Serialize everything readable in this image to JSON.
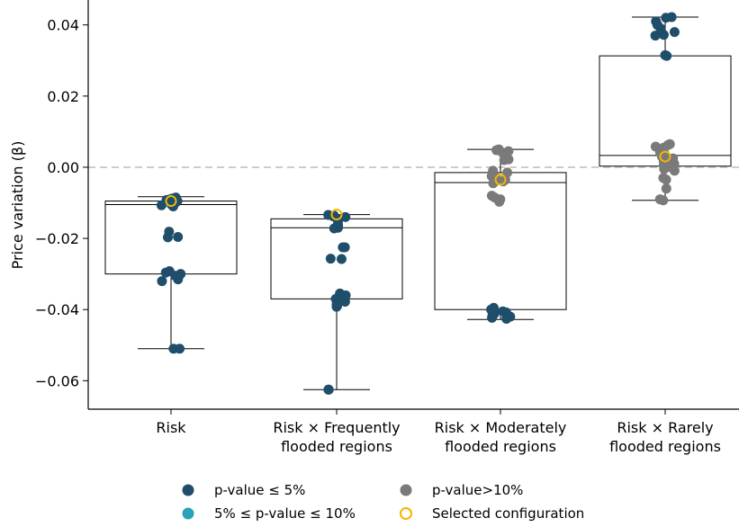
{
  "chart_data": {
    "type": "box",
    "xlabel": "",
    "ylabel": "Price variation (β)",
    "ylim": [
      -0.068,
      0.047
    ],
    "yticks": [
      0.04,
      0.02,
      0.0,
      -0.02,
      -0.04,
      -0.06
    ],
    "ytick_labels": [
      "0.04",
      "0.02",
      "0.00",
      "−0.02",
      "−0.04",
      "−0.06"
    ],
    "reference_line": {
      "y": 0.0,
      "style": "dashed",
      "color": "#cccccc"
    },
    "categories": [
      {
        "label_lines": [
          "Risk"
        ]
      },
      {
        "label_lines": [
          "Risk × Frequently",
          "flooded regions"
        ]
      },
      {
        "label_lines": [
          "Risk × Moderately",
          "flooded regions"
        ]
      },
      {
        "label_lines": [
          "Risk × Rarely",
          "flooded regions"
        ]
      }
    ],
    "boxes": [
      {
        "whisker_low": -0.051,
        "q1": -0.03,
        "median": -0.0105,
        "q3": -0.0095,
        "whisker_high": -0.0083
      },
      {
        "whisker_low": -0.0625,
        "q1": -0.037,
        "median": -0.017,
        "q3": -0.0145,
        "whisker_high": -0.0133
      },
      {
        "whisker_low": -0.0428,
        "q1": -0.04,
        "median": -0.0043,
        "q3": -0.0015,
        "whisker_high": 0.005
      },
      {
        "whisker_low": -0.0093,
        "q1": 0.0003,
        "median": 0.0033,
        "q3": 0.0313,
        "whisker_high": 0.0422
      }
    ],
    "points": [
      [
        {
          "y": -0.0085,
          "s": "sig5"
        },
        {
          "y": -0.0088,
          "s": "sig5"
        },
        {
          "y": -0.009,
          "s": "sig5"
        },
        {
          "y": -0.0092,
          "s": "sig5"
        },
        {
          "y": -0.0095,
          "s": "sig5"
        },
        {
          "y": -0.0098,
          "s": "sig5"
        },
        {
          "y": -0.01,
          "s": "sig5"
        },
        {
          "y": -0.0102,
          "s": "sig5"
        },
        {
          "y": -0.0105,
          "s": "sig5"
        },
        {
          "y": -0.0107,
          "s": "sig5"
        },
        {
          "y": -0.0108,
          "s": "sig5"
        },
        {
          "y": -0.011,
          "s": "sig5"
        },
        {
          "y": -0.0181,
          "s": "sig5"
        },
        {
          "y": -0.0196,
          "s": "sig5"
        },
        {
          "y": -0.0197,
          "s": "sig5"
        },
        {
          "y": -0.0292,
          "s": "sig5"
        },
        {
          "y": -0.0296,
          "s": "sig5"
        },
        {
          "y": -0.03,
          "s": "sig5"
        },
        {
          "y": -0.0305,
          "s": "sig5"
        },
        {
          "y": -0.031,
          "s": "sig5"
        },
        {
          "y": -0.0315,
          "s": "sig5"
        },
        {
          "y": -0.032,
          "s": "sig5"
        },
        {
          "y": -0.051,
          "s": "sig5"
        },
        {
          "y": -0.051,
          "s": "sig5"
        }
      ],
      [
        {
          "y": -0.0134,
          "s": "sig5"
        },
        {
          "y": -0.0136,
          "s": "sig5"
        },
        {
          "y": -0.0138,
          "s": "sig5"
        },
        {
          "y": -0.014,
          "s": "sig5"
        },
        {
          "y": -0.0145,
          "s": "sig5"
        },
        {
          "y": -0.015,
          "s": "sig5"
        },
        {
          "y": -0.016,
          "s": "sig5"
        },
        {
          "y": -0.0165,
          "s": "sig5"
        },
        {
          "y": -0.017,
          "s": "sig5"
        },
        {
          "y": -0.0172,
          "s": "sig5"
        },
        {
          "y": -0.0225,
          "s": "sig5"
        },
        {
          "y": -0.0225,
          "s": "sig5"
        },
        {
          "y": -0.0257,
          "s": "sig5"
        },
        {
          "y": -0.0258,
          "s": "sig5"
        },
        {
          "y": -0.0355,
          "s": "sig5"
        },
        {
          "y": -0.036,
          "s": "sig5"
        },
        {
          "y": -0.037,
          "s": "sig5"
        },
        {
          "y": -0.0378,
          "s": "sig5"
        },
        {
          "y": -0.0385,
          "s": "sig5"
        },
        {
          "y": -0.039,
          "s": "sig5"
        },
        {
          "y": -0.0392,
          "s": "sig5"
        },
        {
          "y": -0.0625,
          "s": "sig5"
        },
        {
          "y": -0.0625,
          "s": "sig5"
        }
      ],
      [
        {
          "y": 0.005,
          "s": "ns"
        },
        {
          "y": 0.0048,
          "s": "ns"
        },
        {
          "y": 0.0045,
          "s": "ns"
        },
        {
          "y": 0.004,
          "s": "ns"
        },
        {
          "y": 0.0022,
          "s": "ns"
        },
        {
          "y": 0.002,
          "s": "ns"
        },
        {
          "y": -0.001,
          "s": "ns"
        },
        {
          "y": -0.0015,
          "s": "ns"
        },
        {
          "y": -0.0025,
          "s": "ns"
        },
        {
          "y": -0.003,
          "s": "ns"
        },
        {
          "y": -0.0035,
          "s": "ns"
        },
        {
          "y": -0.004,
          "s": "ns"
        },
        {
          "y": -0.0045,
          "s": "ns"
        },
        {
          "y": -0.008,
          "s": "ns"
        },
        {
          "y": -0.0085,
          "s": "ns"
        },
        {
          "y": -0.009,
          "s": "ns"
        },
        {
          "y": -0.0097,
          "s": "ns"
        },
        {
          "y": -0.0395,
          "s": "sig5"
        },
        {
          "y": -0.04,
          "s": "sig5"
        },
        {
          "y": -0.0403,
          "s": "sig5"
        },
        {
          "y": -0.0405,
          "s": "sig5"
        },
        {
          "y": -0.0408,
          "s": "sig5"
        },
        {
          "y": -0.041,
          "s": "sig5"
        },
        {
          "y": -0.0413,
          "s": "sig5"
        },
        {
          "y": -0.0416,
          "s": "sig5"
        },
        {
          "y": -0.042,
          "s": "sig5"
        },
        {
          "y": -0.0423,
          "s": "sig5"
        },
        {
          "y": -0.0426,
          "s": "sig5"
        }
      ],
      [
        {
          "y": 0.0422,
          "s": "sig5"
        },
        {
          "y": 0.042,
          "s": "sig5"
        },
        {
          "y": 0.041,
          "s": "sig5"
        },
        {
          "y": 0.04,
          "s": "sig5"
        },
        {
          "y": 0.039,
          "s": "sig5"
        },
        {
          "y": 0.038,
          "s": "sig5"
        },
        {
          "y": 0.0372,
          "s": "sig5"
        },
        {
          "y": 0.037,
          "s": "sig5"
        },
        {
          "y": 0.0315,
          "s": "sig5"
        },
        {
          "y": 0.0313,
          "s": "sig5"
        },
        {
          "y": 0.0065,
          "s": "ns"
        },
        {
          "y": 0.0062,
          "s": "ns"
        },
        {
          "y": 0.0058,
          "s": "ns"
        },
        {
          "y": 0.0055,
          "s": "ns"
        },
        {
          "y": 0.0048,
          "s": "ns"
        },
        {
          "y": 0.0042,
          "s": "ns"
        },
        {
          "y": 0.0038,
          "s": "ns"
        },
        {
          "y": 0.003,
          "s": "ns"
        },
        {
          "y": 0.0025,
          "s": "ns"
        },
        {
          "y": 0.002,
          "s": "ns"
        },
        {
          "y": 0.0015,
          "s": "ns"
        },
        {
          "y": 0.001,
          "s": "ns"
        },
        {
          "y": 0.0005,
          "s": "ns"
        },
        {
          "y": 0.0,
          "s": "ns"
        },
        {
          "y": -0.0005,
          "s": "ns"
        },
        {
          "y": -0.001,
          "s": "ns"
        },
        {
          "y": -0.003,
          "s": "ns"
        },
        {
          "y": -0.0035,
          "s": "ns"
        },
        {
          "y": -0.006,
          "s": "ns"
        },
        {
          "y": -0.009,
          "s": "ns"
        },
        {
          "y": -0.0093,
          "s": "ns"
        }
      ]
    ],
    "selected": [
      -0.0095,
      -0.0133,
      -0.0035,
      0.003
    ],
    "colors": {
      "sig5": "#1f4e6b",
      "sig10": "#2aa3b8",
      "ns": "#7a7a7a",
      "selected": "#f2b600",
      "box": "#000000",
      "refline": "#cccccc"
    },
    "legend": {
      "placement": "bottom",
      "items": [
        {
          "key": "sig5",
          "label": "p-value ≤ 5%",
          "marker": "filled"
        },
        {
          "key": "ns",
          "label": "p-value>10%",
          "marker": "filled"
        },
        {
          "key": "sig10",
          "label": "5% ≤ p-value ≤ 10%",
          "marker": "filled"
        },
        {
          "key": "selected",
          "label": "Selected configuration",
          "marker": "open"
        }
      ]
    }
  }
}
